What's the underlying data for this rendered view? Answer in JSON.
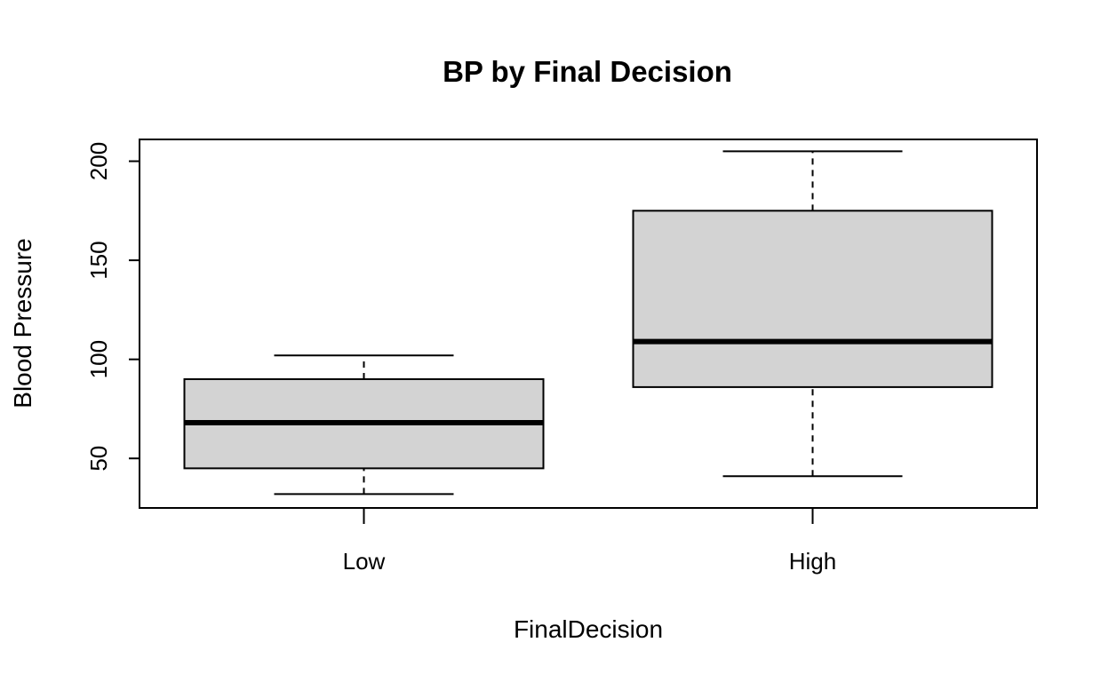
{
  "chart_data": {
    "type": "boxplot",
    "title": "BP by Final Decision",
    "xlabel": "FinalDecision",
    "ylabel": "Blood Pressure",
    "categories": [
      "Low",
      "High"
    ],
    "boxes": [
      {
        "category": "Low",
        "whisker_low": 32,
        "q1": 45,
        "median": 68,
        "q3": 90,
        "whisker_high": 102
      },
      {
        "category": "High",
        "whisker_low": 41,
        "q1": 86,
        "median": 109,
        "q3": 175,
        "whisker_high": 205
      }
    ],
    "yticks": [
      50,
      100,
      150,
      200
    ],
    "ylim": [
      25,
      211
    ],
    "box_fill": "#d3d3d3",
    "line_color": "#000000",
    "grid": false,
    "legend": "none"
  }
}
